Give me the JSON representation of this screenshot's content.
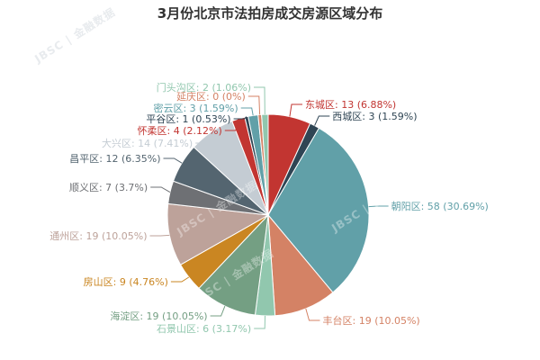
{
  "chart_data": {
    "type": "pie",
    "title": "3月份北京市法拍房成交房源区域分布",
    "slices": [
      {
        "name": "东城区",
        "value": 13,
        "pct": "6.88%",
        "color": "#c23531"
      },
      {
        "name": "西城区",
        "value": 3,
        "pct": "1.59%",
        "color": "#2f4554"
      },
      {
        "name": "朝阳区",
        "value": 58,
        "pct": "30.69%",
        "color": "#61a0a8"
      },
      {
        "name": "丰台区",
        "value": 19,
        "pct": "10.05%",
        "color": "#d48265"
      },
      {
        "name": "石景山区",
        "value": 6,
        "pct": "3.17%",
        "color": "#91c7ae"
      },
      {
        "name": "海淀区",
        "value": 19,
        "pct": "10.05%",
        "color": "#749f83"
      },
      {
        "name": "房山区",
        "value": 9,
        "pct": "4.76%",
        "color": "#ca8622"
      },
      {
        "name": "通州区",
        "value": 19,
        "pct": "10.05%",
        "color": "#bda29a"
      },
      {
        "name": "顺义区",
        "value": 7,
        "pct": "3.7%",
        "color": "#6e7074"
      },
      {
        "name": "昌平区",
        "value": 12,
        "pct": "6.35%",
        "color": "#546570"
      },
      {
        "name": "大兴区",
        "value": 14,
        "pct": "7.41%",
        "color": "#c4ccd3"
      },
      {
        "name": "怀柔区",
        "value": 4,
        "pct": "2.12%",
        "color": "#c23531"
      },
      {
        "name": "平谷区",
        "value": 1,
        "pct": "0.53%",
        "color": "#2f4554"
      },
      {
        "name": "密云区",
        "value": 3,
        "pct": "1.59%",
        "color": "#61a0a8"
      },
      {
        "name": "延庆区",
        "value": 0,
        "pct": "0%",
        "color": "#d48265"
      },
      {
        "name": "门头沟区",
        "value": 2,
        "pct": "1.06%",
        "color": "#91c7ae"
      }
    ]
  },
  "watermark": "JBSC | 金融数据"
}
